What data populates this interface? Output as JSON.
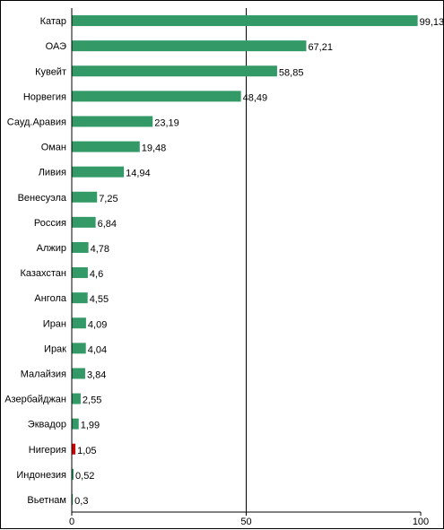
{
  "chart_data": {
    "type": "bar",
    "orientation": "horizontal",
    "categories": [
      "Катар",
      "ОАЭ",
      "Кувейт",
      "Норвегия",
      "Сауд.Аравия",
      "Оман",
      "Ливия",
      "Венесуэла",
      "Россия",
      "Алжир",
      "Казахстан",
      "Ангола",
      "Иран",
      "Ирак",
      "Малайзия",
      "Азербайджан",
      "Эквадор",
      "Нигерия",
      "Индонезия",
      "Вьетнам"
    ],
    "values": [
      99.13,
      67.21,
      58.85,
      48.49,
      23.19,
      19.48,
      14.94,
      7.25,
      6.84,
      4.78,
      4.6,
      4.55,
      4.09,
      4.04,
      3.84,
      2.55,
      1.99,
      1.05,
      0.52,
      0.3
    ],
    "value_labels": [
      "99,13",
      "67,21",
      "58,85",
      "48,49",
      "23,19",
      "19,48",
      "14,94",
      "7,25",
      "6,84",
      "4,78",
      "4,6",
      "4,55",
      "4,09",
      "4,04",
      "3,84",
      "2,55",
      "1,99",
      "1,05",
      "0,52",
      "0,3"
    ],
    "xlim": [
      0,
      100
    ],
    "xticks": [
      0,
      50,
      100
    ],
    "xtick_labels": [
      "0",
      "50",
      "100"
    ],
    "colors": {
      "default": "#339966",
      "highlight": "#cc0000"
    },
    "highlight_category": "Нигерия",
    "grid": "vertical line at 50",
    "legend": "none"
  }
}
